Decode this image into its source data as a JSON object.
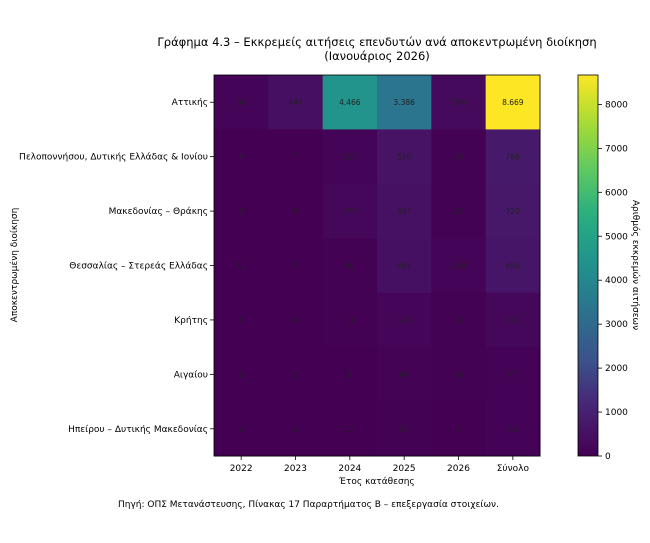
{
  "chart_data": {
    "type": "heatmap",
    "title": "Γράφημα 4.3 – Εκκρεμείς αιτήσεις επενδυτών ανά αποκεντρωμένη διοίκηση",
    "subtitle": "(Ιανουάριος 2026)",
    "xlabel": "Έτος κατάθεσης",
    "ylabel": "Αποκεντρωμένη διοίκηση",
    "x_categories": [
      "2022",
      "2023",
      "2024",
      "2025",
      "2026",
      "Σύνολο"
    ],
    "y_categories": [
      "Αττικής",
      "Πελοποννήσου, Δυτικής Ελλάδας & Ιονίου",
      "Μακεδονίας – Θράκης",
      "Θεσσαλίας – Στερεάς Ελλάδας",
      "Κρήτης",
      "Αιγαίου",
      "Ηπείρου – Δυτικής Μακεδονίας"
    ],
    "values": [
      [
        96,
        447,
        4466,
        3386,
        274,
        8669
      ],
      [
        4,
        7,
        129,
        590,
        38,
        768
      ],
      [
        0,
        6,
        179,
        497,
        47,
        729
      ],
      [
        11,
        2,
        48,
        481,
        108,
        650
      ],
      [
        5,
        4,
        17,
        143,
        22,
        191
      ],
      [
        0,
        2,
        8,
        49,
        18,
        77
      ],
      [
        2,
        2,
        12,
        38,
        9,
        63
      ]
    ],
    "value_labels": [
      [
        "96",
        "447",
        "4.466",
        "3.386",
        "274",
        "8.669"
      ],
      [
        "4",
        "7",
        "129",
        "590",
        "38",
        "768"
      ],
      [
        "0",
        "6",
        "179",
        "497",
        "47",
        "729"
      ],
      [
        "11",
        "2",
        "48",
        "481",
        "108",
        "650"
      ],
      [
        "5",
        "4",
        "17",
        "143",
        "22",
        "191"
      ],
      [
        "0",
        "2",
        "8",
        "49",
        "18",
        "77"
      ],
      [
        "2",
        "2",
        "12",
        "38",
        "9",
        "63"
      ]
    ],
    "colormap": "viridis",
    "colorbar": {
      "label": "Αριθμός εκκρεμών αιτήσεων",
      "range": [
        0,
        8669
      ],
      "ticks": [
        0,
        1000,
        2000,
        3000,
        4000,
        5000,
        6000,
        7000,
        8000
      ],
      "tick_labels": [
        "0",
        "1000",
        "2000",
        "3000",
        "4000",
        "5000",
        "6000",
        "7000",
        "8000"
      ]
    },
    "source": "Πηγή: ΟΠΣ Μετανάστευσης, Πίνακας 17 Παραρτήματος Β – επεξεργασία στοιχείων."
  }
}
